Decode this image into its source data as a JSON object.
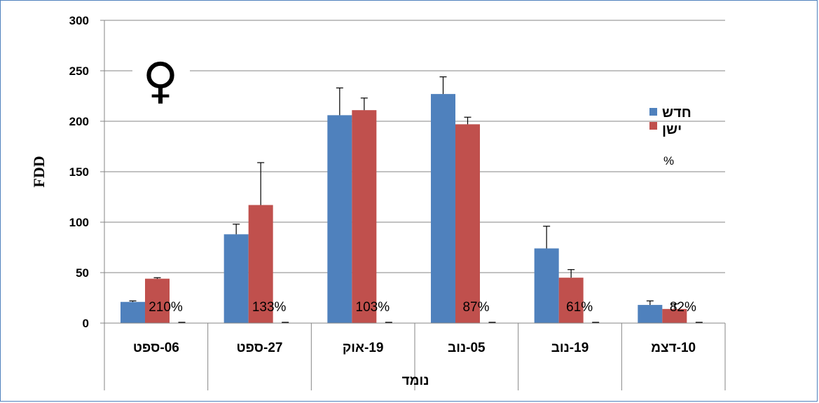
{
  "chart_data": {
    "type": "bar",
    "categories": [
      "06-ספט",
      "27-ספט",
      "19-אוק",
      "05-נוב",
      "19-נוב",
      "10-דצמ"
    ],
    "series": [
      {
        "name": "חדש",
        "values": [
          21,
          88,
          206,
          227,
          74,
          18
        ],
        "errors": [
          1,
          10,
          27,
          17,
          22,
          4
        ],
        "color": "#4f81bd"
      },
      {
        "name": "ישן",
        "values": [
          44,
          117,
          211,
          197,
          45,
          14
        ],
        "errors": [
          1,
          42,
          12,
          7,
          8,
          5
        ],
        "color": "#c0504d"
      },
      {
        "name": "%",
        "values": [
          0,
          0,
          0,
          0,
          0,
          0
        ]
      }
    ],
    "percent_labels": [
      "210%",
      "133%",
      "103%",
      "87%",
      "61%",
      "82%"
    ],
    "title": "",
    "symbol": "♀",
    "xlabel": "נומד",
    "ylabel": "FDD",
    "ylim": [
      0,
      300
    ],
    "yticks": [
      0,
      50,
      100,
      150,
      200,
      250,
      300
    ],
    "grid": true,
    "legend": "right"
  }
}
